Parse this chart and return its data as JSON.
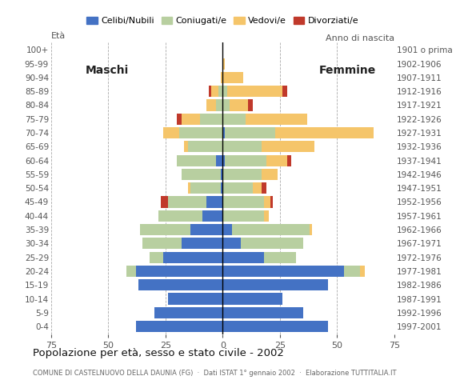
{
  "age_groups": [
    "0-4",
    "5-9",
    "10-14",
    "15-19",
    "20-24",
    "25-29",
    "30-34",
    "35-39",
    "40-44",
    "45-49",
    "50-54",
    "55-59",
    "60-64",
    "65-69",
    "70-74",
    "75-79",
    "80-84",
    "85-89",
    "90-94",
    "95-99",
    "100+"
  ],
  "birth_years": [
    "1997-2001",
    "1992-1996",
    "1987-1991",
    "1982-1986",
    "1977-1981",
    "1972-1976",
    "1967-1971",
    "1962-1966",
    "1957-1961",
    "1952-1956",
    "1947-1951",
    "1942-1946",
    "1937-1941",
    "1932-1936",
    "1927-1931",
    "1922-1926",
    "1917-1921",
    "1912-1916",
    "1907-1911",
    "1902-1906",
    "1901 o prima"
  ],
  "maschi": {
    "celibi": [
      38,
      30,
      24,
      37,
      38,
      26,
      18,
      14,
      9,
      7,
      1,
      1,
      3,
      0,
      0,
      0,
      0,
      0,
      0,
      0,
      0
    ],
    "coniugati": [
      0,
      0,
      0,
      0,
      4,
      6,
      17,
      22,
      19,
      17,
      13,
      17,
      17,
      15,
      19,
      10,
      3,
      2,
      0,
      0,
      0
    ],
    "vedovi": [
      0,
      0,
      0,
      0,
      0,
      0,
      0,
      0,
      0,
      0,
      1,
      0,
      0,
      2,
      7,
      8,
      4,
      3,
      1,
      0,
      0
    ],
    "divorziati": [
      0,
      0,
      0,
      0,
      0,
      0,
      0,
      0,
      0,
      3,
      0,
      0,
      0,
      0,
      0,
      2,
      0,
      1,
      0,
      0,
      0
    ]
  },
  "femmine": {
    "nubili": [
      46,
      35,
      26,
      46,
      53,
      18,
      8,
      4,
      0,
      0,
      0,
      0,
      1,
      0,
      1,
      0,
      0,
      0,
      0,
      0,
      0
    ],
    "coniugate": [
      0,
      0,
      0,
      0,
      7,
      14,
      27,
      34,
      18,
      18,
      13,
      17,
      18,
      17,
      22,
      10,
      3,
      2,
      0,
      0,
      0
    ],
    "vedove": [
      0,
      0,
      0,
      0,
      2,
      0,
      0,
      1,
      2,
      3,
      4,
      7,
      9,
      23,
      43,
      27,
      8,
      24,
      9,
      1,
      0
    ],
    "divorziate": [
      0,
      0,
      0,
      0,
      0,
      0,
      0,
      0,
      0,
      1,
      2,
      0,
      2,
      0,
      0,
      0,
      2,
      2,
      0,
      0,
      0
    ]
  },
  "colors": {
    "celibi_nubili": "#4472c4",
    "coniugati": "#b8cfa0",
    "vedovi": "#f5c56a",
    "divorziati": "#c0392b"
  },
  "xlim": 75,
  "title": "Popolazione per età, sesso e stato civile - 2002",
  "subtitle": "COMUNE DI CASTELNUOVO DELLA DAUNIA (FG)  ·  Dati ISTAT 1° gennaio 2002  ·  Elaborazione TUTTITALIA.IT",
  "legend_labels": [
    "Celibi/Nubili",
    "Coniugati/e",
    "Vedovi/e",
    "Divorziati/e"
  ],
  "label_left": "Età",
  "label_right": "Anno di nascita"
}
